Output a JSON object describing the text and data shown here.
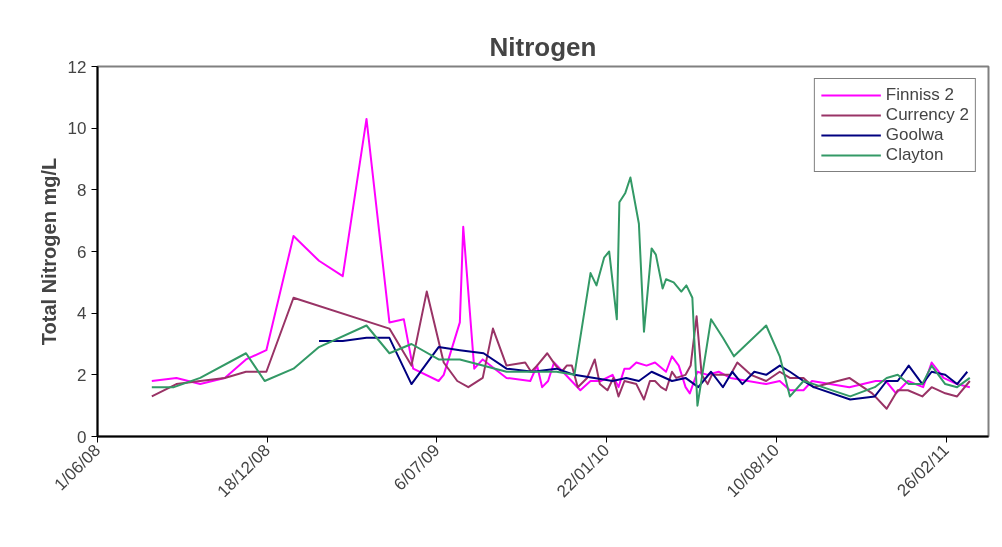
{
  "chart_data": {
    "type": "line",
    "title": "Nitrogen",
    "ylabel": "Total Nitrogen mg/L",
    "xlim": [
      "2008-06-01",
      "2011-04-17"
    ],
    "ylim": [
      0,
      12
    ],
    "yticks": [
      0,
      2,
      4,
      6,
      8,
      10,
      12
    ],
    "xticks": [
      {
        "value": "2008-06-01",
        "label": "1/06/08"
      },
      {
        "value": "2008-12-18",
        "label": "18/12/08"
      },
      {
        "value": "2009-07-06",
        "label": "6/07/09"
      },
      {
        "value": "2010-01-22",
        "label": "22/01/10"
      },
      {
        "value": "2010-08-10",
        "label": "10/08/10"
      },
      {
        "value": "2011-02-26",
        "label": "26/02/11"
      }
    ],
    "grid": false,
    "legend": "top right",
    "line_style": "solid",
    "series": [
      {
        "name": "Finniss 2",
        "color": "#ff00ff",
        "x": [
          "2008-08-04",
          "2008-09-02",
          "2008-09-30",
          "2008-10-29",
          "2008-11-23",
          "2008-12-17",
          "2009-01-18",
          "2009-02-17",
          "2009-03-17",
          "2009-04-14",
          "2009-05-11",
          "2009-05-28",
          "2009-06-08",
          "2009-07-08",
          "2009-07-14",
          "2009-08-02",
          "2009-08-06",
          "2009-08-19",
          "2009-08-29",
          "2009-09-26",
          "2009-10-24",
          "2009-11-01",
          "2009-11-07",
          "2009-11-14",
          "2009-11-21",
          "2009-12-22",
          "2010-01-03",
          "2010-01-15",
          "2010-01-29",
          "2010-02-05",
          "2010-02-12",
          "2010-02-18",
          "2010-02-26",
          "2010-03-10",
          "2010-03-20",
          "2010-04-02",
          "2010-04-09",
          "2010-04-17",
          "2010-04-25",
          "2010-04-30",
          "2010-05-09",
          "2010-05-21",
          "2010-06-03",
          "2010-06-17",
          "2010-07-29",
          "2010-08-14",
          "2010-08-26",
          "2010-09-11",
          "2010-09-21",
          "2010-11-04",
          "2010-12-05",
          "2010-12-17",
          "2010-12-29",
          "2011-01-12",
          "2011-01-30",
          "2011-02-09",
          "2011-02-23",
          "2011-03-11",
          "2011-03-26"
        ],
        "values": [
          1.8,
          1.9,
          1.7,
          1.9,
          2.5,
          2.8,
          6.5,
          5.7,
          5.2,
          10.3,
          3.7,
          3.8,
          2.2,
          1.8,
          2.0,
          3.7,
          6.8,
          2.2,
          2.5,
          1.9,
          1.8,
          2.3,
          1.6,
          1.8,
          2.4,
          1.5,
          1.8,
          1.8,
          2.0,
          1.6,
          2.2,
          2.2,
          2.4,
          2.3,
          2.4,
          2.1,
          2.6,
          2.3,
          1.6,
          1.4,
          2.1,
          2.0,
          2.1,
          1.9,
          1.7,
          1.8,
          1.5,
          1.5,
          1.8,
          1.6,
          1.8,
          1.8,
          1.4,
          1.8,
          1.6,
          2.4,
          1.9,
          1.7,
          1.6
        ]
      },
      {
        "name": "Currency 2",
        "color": "#993366",
        "x": [
          "2008-08-04",
          "2008-09-02",
          "2008-09-30",
          "2008-10-29",
          "2008-11-23",
          "2008-12-17",
          "2009-01-18",
          "2009-05-11",
          "2009-06-06",
          "2009-06-24",
          "2009-07-14",
          "2009-07-30",
          "2009-08-12",
          "2009-08-29",
          "2009-09-10",
          "2009-09-26",
          "2009-10-18",
          "2009-10-25",
          "2009-11-01",
          "2009-11-13",
          "2009-11-23",
          "2009-11-30",
          "2009-12-06",
          "2009-12-12",
          "2009-12-19",
          "2009-12-30",
          "2010-01-08",
          "2010-01-14",
          "2010-01-23",
          "2010-01-30",
          "2010-02-05",
          "2010-02-12",
          "2010-02-26",
          "2010-03-07",
          "2010-03-14",
          "2010-03-20",
          "2010-03-27",
          "2010-04-02",
          "2010-04-09",
          "2010-04-14",
          "2010-04-25",
          "2010-05-01",
          "2010-05-08",
          "2010-05-14",
          "2010-05-21",
          "2010-05-26",
          "2010-06-03",
          "2010-06-17",
          "2010-06-25",
          "2010-07-11",
          "2010-07-29",
          "2010-08-14",
          "2010-08-26",
          "2010-09-11",
          "2010-09-23",
          "2010-11-04",
          "2010-12-01",
          "2010-12-18",
          "2010-12-31",
          "2011-01-12",
          "2011-01-29",
          "2011-02-09",
          "2011-02-25",
          "2011-03-11",
          "2011-03-26"
        ],
        "values": [
          1.3,
          1.7,
          1.8,
          1.9,
          2.1,
          2.1,
          4.5,
          3.5,
          2.3,
          4.7,
          2.4,
          1.8,
          1.6,
          1.9,
          3.5,
          2.3,
          2.4,
          2.1,
          2.3,
          2.7,
          2.3,
          2.1,
          2.3,
          2.3,
          1.6,
          1.9,
          2.5,
          1.7,
          1.5,
          1.9,
          1.3,
          1.8,
          1.7,
          1.2,
          1.8,
          1.8,
          1.6,
          1.5,
          2.1,
          1.9,
          2.0,
          2.3,
          3.9,
          2.0,
          1.7,
          2.0,
          2.0,
          2.0,
          2.4,
          2.0,
          1.8,
          2.1,
          1.9,
          1.9,
          1.6,
          1.9,
          1.4,
          0.9,
          1.5,
          1.5,
          1.3,
          1.6,
          1.4,
          1.3,
          1.8
        ]
      },
      {
        "name": "Goolwa",
        "color": "#000080",
        "x": [
          "2009-02-17",
          "2009-03-17",
          "2009-04-14",
          "2009-05-11",
          "2009-06-06",
          "2009-07-08",
          "2009-08-02",
          "2009-08-30",
          "2009-09-26",
          "2009-10-27",
          "2009-11-24",
          "2009-12-15",
          "2010-01-29",
          "2010-02-14",
          "2010-03-01",
          "2010-03-16",
          "2010-04-09",
          "2010-04-25",
          "2010-05-10",
          "2010-05-25",
          "2010-06-08",
          "2010-06-19",
          "2010-07-01",
          "2010-07-15",
          "2010-07-29",
          "2010-08-14",
          "2010-08-26",
          "2010-09-11",
          "2010-09-23",
          "2010-11-05",
          "2010-12-04",
          "2010-12-18",
          "2010-12-31",
          "2011-01-13",
          "2011-01-29",
          "2011-02-09",
          "2011-02-25",
          "2011-03-11",
          "2011-03-23"
        ],
        "values": [
          3.1,
          3.1,
          3.2,
          3.2,
          1.7,
          2.9,
          2.8,
          2.7,
          2.2,
          2.1,
          2.2,
          2.0,
          1.8,
          1.9,
          1.8,
          2.1,
          1.8,
          1.9,
          1.6,
          2.1,
          1.6,
          2.1,
          1.7,
          2.1,
          2.0,
          2.3,
          2.1,
          1.8,
          1.6,
          1.2,
          1.3,
          1.8,
          1.8,
          2.3,
          1.7,
          2.1,
          2.0,
          1.7,
          2.1
        ]
      },
      {
        "name": "Clayton",
        "color": "#339966",
        "x": [
          "2008-08-04",
          "2008-08-30",
          "2008-09-30",
          "2008-11-23",
          "2008-12-15",
          "2009-01-18",
          "2009-02-17",
          "2009-04-14",
          "2009-05-11",
          "2009-06-06",
          "2009-07-08",
          "2009-08-02",
          "2009-08-29",
          "2009-09-26",
          "2009-11-24",
          "2009-12-15",
          "2010-01-03",
          "2010-01-10",
          "2010-01-19",
          "2010-01-25",
          "2010-02-03",
          "2010-02-06",
          "2010-02-13",
          "2010-02-19",
          "2010-03-01",
          "2010-03-07",
          "2010-03-16",
          "2010-03-21",
          "2010-03-29",
          "2010-04-02",
          "2010-04-11",
          "2010-04-20",
          "2010-04-26",
          "2010-05-03",
          "2010-05-09",
          "2010-05-25",
          "2010-06-08",
          "2010-06-21",
          "2010-07-29",
          "2010-08-14",
          "2010-08-26",
          "2010-09-11",
          "2010-09-23",
          "2010-11-05",
          "2010-12-04",
          "2010-12-18",
          "2010-12-31",
          "2011-01-13",
          "2011-01-29",
          "2011-02-09",
          "2011-02-25",
          "2011-03-11",
          "2011-03-26"
        ],
        "values": [
          1.6,
          1.6,
          1.9,
          2.7,
          1.8,
          2.2,
          2.9,
          3.6,
          2.7,
          3.0,
          2.5,
          2.5,
          2.3,
          2.1,
          2.1,
          2.0,
          5.3,
          4.9,
          5.8,
          6.0,
          3.8,
          7.6,
          7.9,
          8.4,
          6.9,
          3.4,
          6.1,
          5.9,
          4.8,
          5.1,
          5.0,
          4.7,
          4.9,
          4.5,
          1.0,
          3.8,
          3.2,
          2.6,
          3.6,
          2.6,
          1.3,
          1.8,
          1.7,
          1.3,
          1.6,
          1.9,
          2.0,
          1.7,
          1.7,
          2.3,
          1.7,
          1.6,
          1.9
        ]
      }
    ]
  }
}
